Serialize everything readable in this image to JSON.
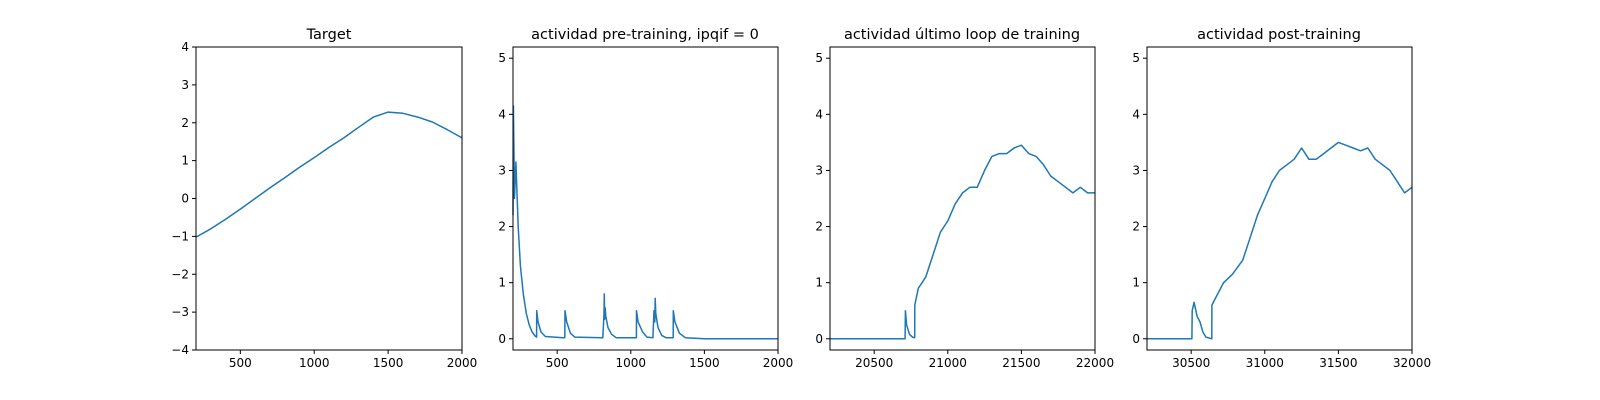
{
  "chart_data": [
    {
      "type": "line",
      "title": "Target",
      "xlabel": "",
      "ylabel": "",
      "xlim": [
        200,
        2000
      ],
      "ylim": [
        -4,
        4
      ],
      "xticks": [
        "500",
        "1000",
        "1500",
        "2000"
      ],
      "yticks": [
        "−4",
        "−3",
        "−2",
        "−1",
        "0",
        "1",
        "2",
        "3",
        "4"
      ],
      "grid": false,
      "color": "#1f77b4",
      "series": [
        {
          "x": [
            200,
            300,
            400,
            500,
            600,
            700,
            800,
            900,
            1000,
            1100,
            1200,
            1300,
            1400,
            1500,
            1600,
            1700,
            1800,
            1900,
            2000
          ],
          "values": [
            -1.02,
            -0.8,
            -0.55,
            -0.28,
            0.0,
            0.28,
            0.55,
            0.82,
            1.08,
            1.35,
            1.6,
            1.88,
            2.15,
            2.28,
            2.25,
            2.15,
            2.02,
            1.82,
            1.6
          ]
        }
      ]
    },
    {
      "type": "line",
      "title": "actividad pre-training, ipqif = 0",
      "xlabel": "",
      "ylabel": "",
      "xlim": [
        200,
        2000
      ],
      "ylim": [
        -0.2,
        5.2
      ],
      "xticks": [
        "500",
        "1000",
        "1500",
        "2000"
      ],
      "yticks": [
        "0",
        "1",
        "2",
        "3",
        "4",
        "5"
      ],
      "grid": false,
      "color": "#1f77b4",
      "series": [
        {
          "x": [
            200,
            203,
            210,
            220,
            235,
            250,
            270,
            290,
            310,
            330,
            350,
            360,
            361,
            370,
            390,
            420,
            540,
            552,
            553,
            565,
            590,
            620,
            810,
            818,
            820,
            823,
            826,
            830,
            845,
            870,
            900,
            1030,
            1038,
            1039,
            1050,
            1080,
            1110,
            1150,
            1158,
            1163,
            1166,
            1170,
            1185,
            1210,
            1240,
            1280,
            1288,
            1289,
            1300,
            1330,
            1370,
            1500,
            2000
          ],
          "values": [
            2.2,
            4.15,
            2.5,
            3.15,
            2.0,
            1.3,
            0.8,
            0.45,
            0.25,
            0.12,
            0.05,
            0.03,
            0.5,
            0.3,
            0.12,
            0.04,
            0.02,
            0.02,
            0.5,
            0.3,
            0.1,
            0.03,
            0.02,
            0.45,
            0.8,
            0.35,
            0.55,
            0.4,
            0.2,
            0.08,
            0.02,
            0.02,
            0.02,
            0.5,
            0.3,
            0.12,
            0.03,
            0.02,
            0.5,
            0.3,
            0.72,
            0.45,
            0.2,
            0.06,
            0.02,
            0.02,
            0.02,
            0.5,
            0.3,
            0.1,
            0.02,
            0.0,
            0.0
          ]
        }
      ]
    },
    {
      "type": "line",
      "title": "actividad último loop de training",
      "xlabel": "",
      "ylabel": "",
      "xlim": [
        20200,
        22000
      ],
      "ylim": [
        -0.2,
        5.2
      ],
      "xticks": [
        "20500",
        "21000",
        "21500",
        "22000"
      ],
      "yticks": [
        "0",
        "1",
        "2",
        "3",
        "4",
        "5"
      ],
      "grid": false,
      "color": "#1f77b4",
      "series": [
        {
          "x": [
            20200,
            20710,
            20712,
            20720,
            20740,
            20760,
            20775,
            20776,
            20800,
            20850,
            20900,
            20950,
            21000,
            21050,
            21100,
            21150,
            21200,
            21250,
            21300,
            21350,
            21400,
            21450,
            21500,
            21550,
            21600,
            21650,
            21700,
            21750,
            21800,
            21850,
            21900,
            21950,
            22000
          ],
          "values": [
            0.0,
            0.0,
            0.5,
            0.25,
            0.08,
            0.03,
            0.02,
            0.6,
            0.9,
            1.1,
            1.5,
            1.9,
            2.1,
            2.4,
            2.6,
            2.7,
            2.7,
            3.0,
            3.25,
            3.3,
            3.3,
            3.4,
            3.45,
            3.3,
            3.25,
            3.1,
            2.9,
            2.8,
            2.7,
            2.6,
            2.7,
            2.6,
            2.6
          ]
        }
      ]
    },
    {
      "type": "line",
      "title": "actividad post-training",
      "xlabel": "",
      "ylabel": "",
      "xlim": [
        30200,
        32000
      ],
      "ylim": [
        -0.2,
        5.2
      ],
      "xticks": [
        "30500",
        "31000",
        "31500",
        "32000"
      ],
      "yticks": [
        "0",
        "1",
        "2",
        "3",
        "4",
        "5"
      ],
      "grid": false,
      "color": "#1f77b4",
      "series": [
        {
          "x": [
            30200,
            30505,
            30507,
            30520,
            30540,
            30560,
            30580,
            30600,
            30640,
            30641,
            30680,
            30720,
            30780,
            30850,
            30900,
            30950,
            31000,
            31050,
            31100,
            31150,
            31200,
            31250,
            31300,
            31350,
            31400,
            31450,
            31500,
            31550,
            31600,
            31650,
            31700,
            31750,
            31800,
            31850,
            31900,
            31950,
            32000
          ],
          "values": [
            0.0,
            0.0,
            0.5,
            0.65,
            0.4,
            0.3,
            0.12,
            0.03,
            0.0,
            0.6,
            0.8,
            1.0,
            1.15,
            1.4,
            1.8,
            2.2,
            2.5,
            2.8,
            3.0,
            3.1,
            3.2,
            3.4,
            3.2,
            3.2,
            3.3,
            3.4,
            3.5,
            3.45,
            3.4,
            3.35,
            3.4,
            3.2,
            3.1,
            3.0,
            2.8,
            2.6,
            2.7
          ]
        }
      ]
    }
  ]
}
